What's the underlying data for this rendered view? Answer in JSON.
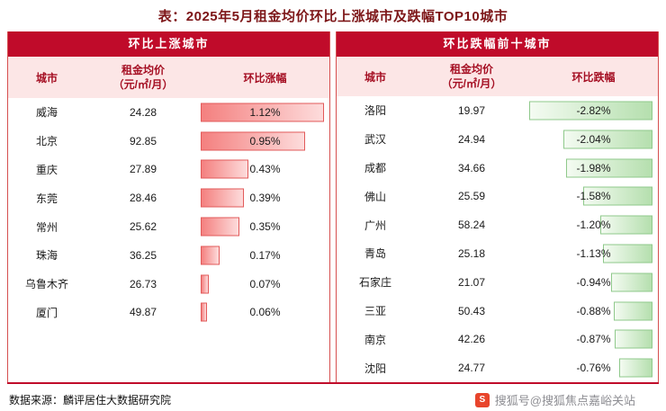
{
  "title": "表：2025年5月租金均价环比上涨城市及跌幅TOP10城市",
  "colors": {
    "title_text": "#7d1618",
    "header_bg": "#c00b2a",
    "subheader_bg": "#fce6e6",
    "subheader_text": "#a50f23",
    "panel_border": "#d65050",
    "rise_bar_from": "#f4807f",
    "rise_bar_to": "#fddcdc",
    "rise_bar_border": "#e25a5a",
    "fall_bar_from": "#b5dfae",
    "fall_bar_to": "#f4fbf2",
    "fall_bar_border": "#8fc98b"
  },
  "chart_data": [
    {
      "type": "table",
      "title": "环比上涨城市",
      "direction": "up",
      "columns": {
        "city": "城市",
        "price_line1": "租金均价",
        "price_line2": "（元/㎡/月）",
        "change": "环比涨幅"
      },
      "rows": [
        {
          "city": "威海",
          "price": 24.28,
          "change": "1.12%",
          "pct": 1.12
        },
        {
          "city": "北京",
          "price": 92.85,
          "change": "0.95%",
          "pct": 0.95
        },
        {
          "city": "重庆",
          "price": 27.89,
          "change": "0.43%",
          "pct": 0.43
        },
        {
          "city": "东莞",
          "price": 28.46,
          "change": "0.39%",
          "pct": 0.39
        },
        {
          "city": "常州",
          "price": 25.62,
          "change": "0.35%",
          "pct": 0.35
        },
        {
          "city": "珠海",
          "price": 36.25,
          "change": "0.17%",
          "pct": 0.17
        },
        {
          "city": "乌鲁木齐",
          "price": 26.73,
          "change": "0.07%",
          "pct": 0.07
        },
        {
          "city": "厦门",
          "price": 49.87,
          "change": "0.06%",
          "pct": 0.06
        }
      ]
    },
    {
      "type": "table",
      "title": "环比跌幅前十城市",
      "direction": "down",
      "columns": {
        "city": "城市",
        "price_line1": "租金均价",
        "price_line2": "（元/㎡/月）",
        "change": "环比跌幅"
      },
      "rows": [
        {
          "city": "洛阳",
          "price": 19.97,
          "change": "-2.82%",
          "pct": -2.82
        },
        {
          "city": "武汉",
          "price": 24.94,
          "change": "-2.04%",
          "pct": -2.04
        },
        {
          "city": "成都",
          "price": 34.66,
          "change": "-1.98%",
          "pct": -1.98
        },
        {
          "city": "佛山",
          "price": 25.59,
          "change": "-1.58%",
          "pct": -1.58
        },
        {
          "city": "广州",
          "price": 58.24,
          "change": "-1.20%",
          "pct": -1.2
        },
        {
          "city": "青岛",
          "price": 25.18,
          "change": "-1.13%",
          "pct": -1.13
        },
        {
          "city": "石家庄",
          "price": 21.07,
          "change": "-0.94%",
          "pct": -0.94
        },
        {
          "city": "三亚",
          "price": 50.43,
          "change": "-0.88%",
          "pct": -0.88
        },
        {
          "city": "南京",
          "price": 42.26,
          "change": "-0.87%",
          "pct": -0.87
        },
        {
          "city": "沈阳",
          "price": 24.77,
          "change": "-0.76%",
          "pct": -0.76
        }
      ]
    }
  ],
  "footer": {
    "source": "数据来源：麟评居住大数据研究院",
    "watermark": "搜狐号@搜狐焦点嘉峪关站",
    "icon_glyph": "S"
  }
}
